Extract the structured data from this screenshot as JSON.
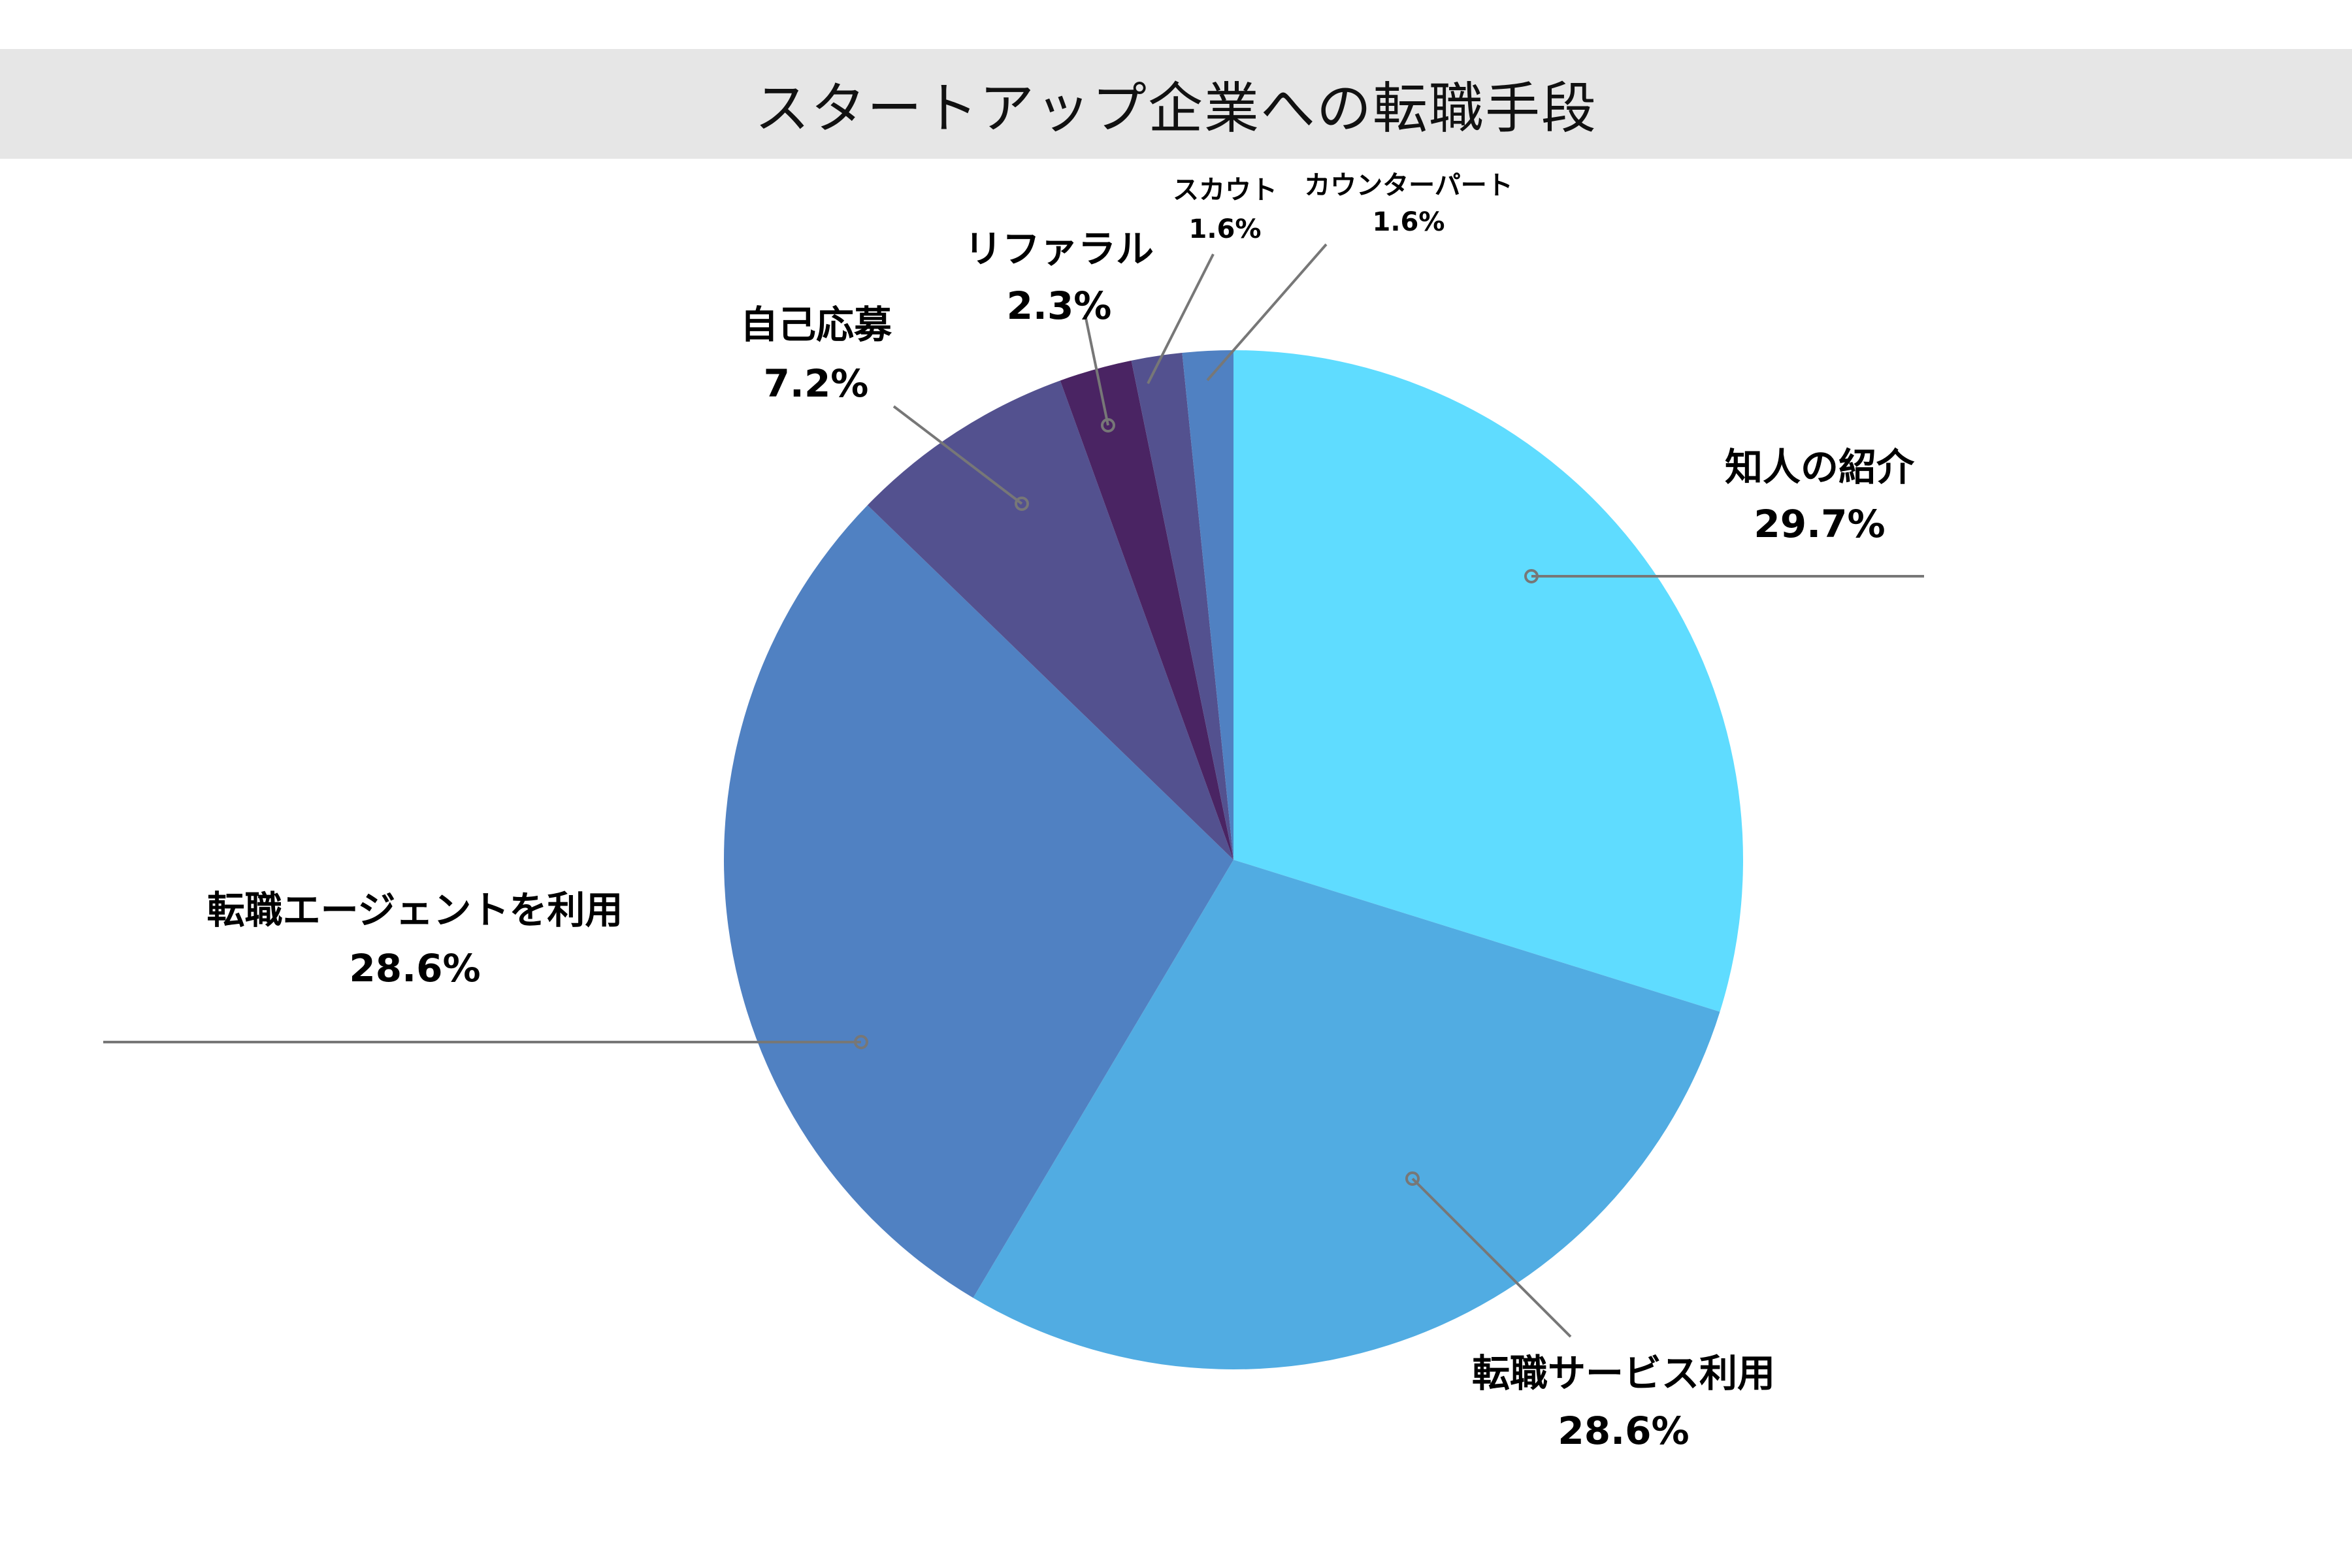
{
  "chart_data": {
    "type": "pie",
    "title": "スタートアップ企業への転職手段",
    "slices": [
      {
        "label": "知人の紹介",
        "value": 29.7,
        "display": "29.7%",
        "color": "#5fdcff"
      },
      {
        "label": "転職サービス利用",
        "value": 28.6,
        "display": "28.6%",
        "color": "#51ace2"
      },
      {
        "label": "転職エージェントを利用",
        "value": 28.6,
        "display": "28.6%",
        "color": "#5081c2"
      },
      {
        "label": "自己応募",
        "value": 7.2,
        "display": "7.2%",
        "color": "#53518f"
      },
      {
        "label": "リファラル",
        "value": 2.3,
        "display": "2.3%",
        "color": "#4a2463"
      },
      {
        "label": "スカウト",
        "value": 1.6,
        "display": "1.6%",
        "color": "#53518f"
      },
      {
        "label": "カウンターパート",
        "value": 1.6,
        "display": "1.6%",
        "color": "#5081c2"
      }
    ],
    "start_angle": "12 o'clock",
    "direction": "clockwise",
    "leader_line_color": "#777777"
  }
}
